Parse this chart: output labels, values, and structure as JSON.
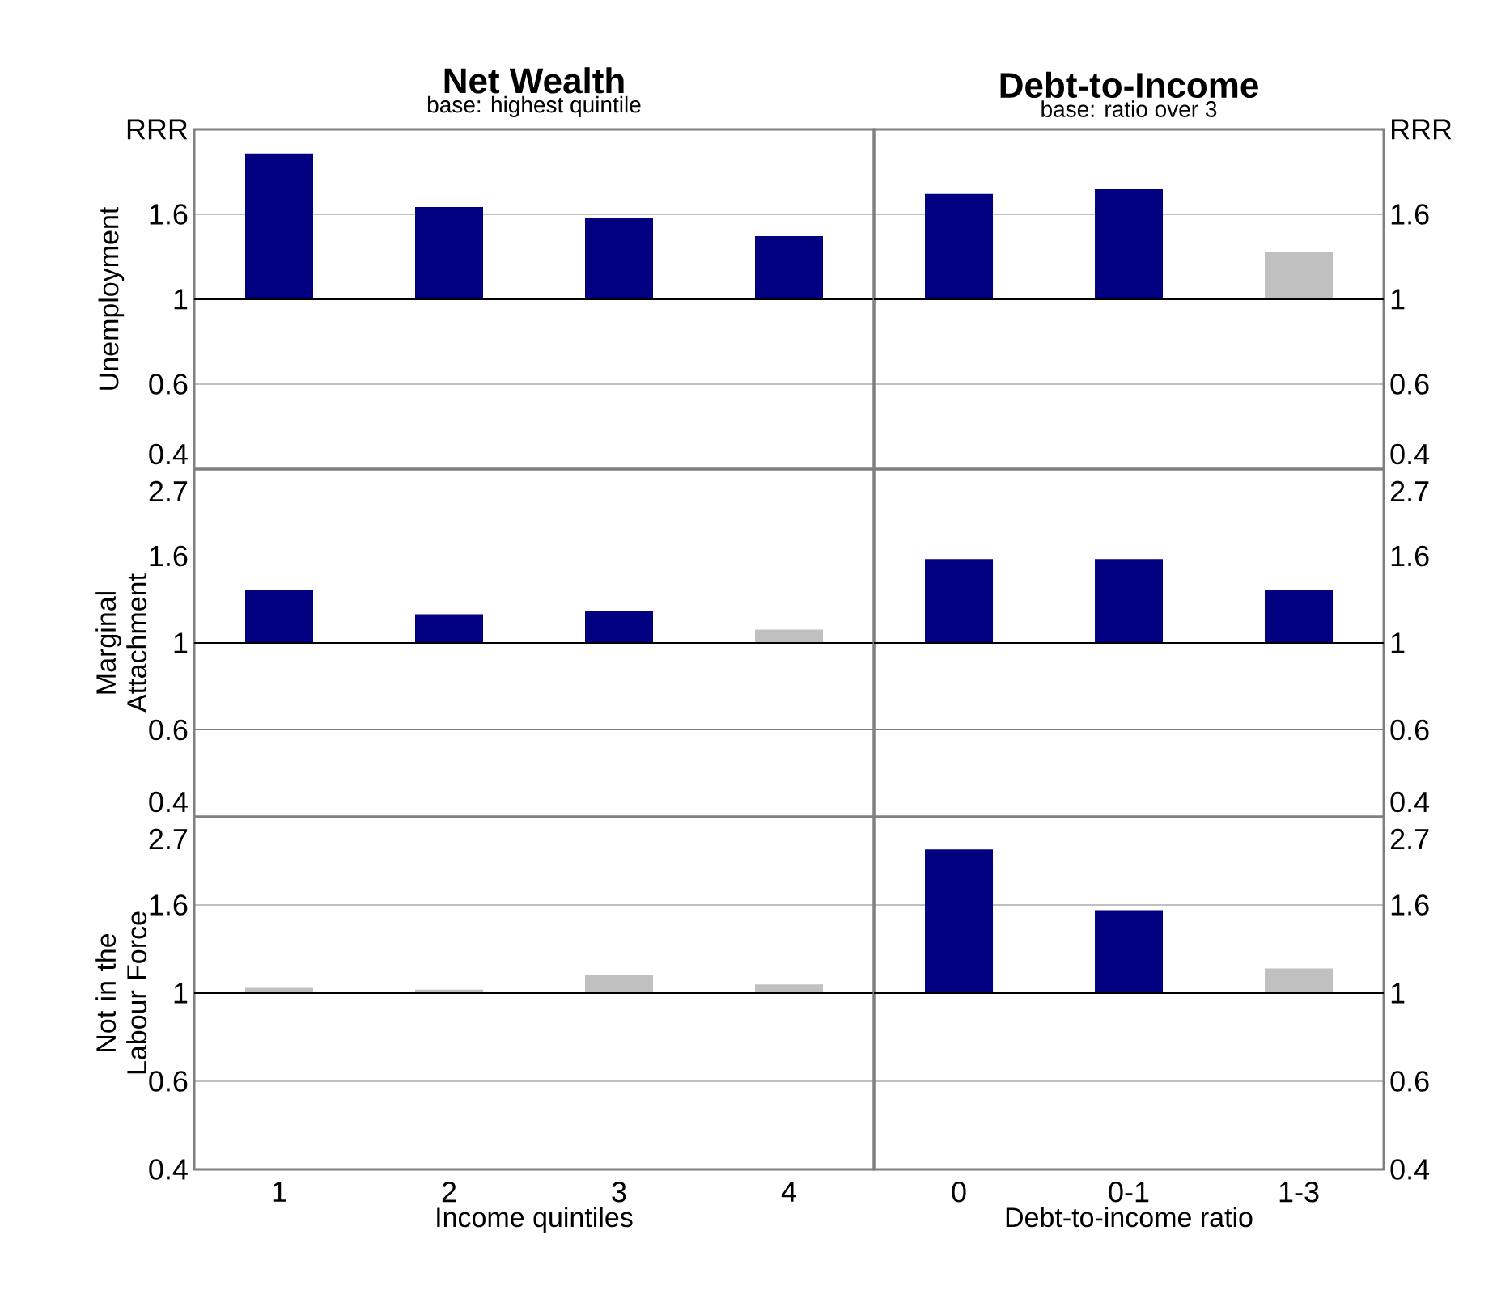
{
  "chart_data": [
    {
      "type": "bar",
      "title": "Net Wealth",
      "subtitle": "base: highest quintile",
      "ylabel": "Unemployment",
      "categories": [
        null,
        null,
        null,
        null
      ],
      "base": [
        1,
        1,
        1,
        1
      ],
      "values": [
        1.36,
        0.72,
        0.61,
        0.45
      ],
      "colors": [
        "#000080",
        "#000080",
        "#000080",
        "#000080"
      ],
      "log": "y",
      "ylim": [
        0.3679,
        2.7183
      ],
      "yticks": [
        {
          "value": 0.3679,
          "label": "0.4"
        },
        {
          "value": 0.6065,
          "label": "0.6"
        },
        1,
        {
          "value": 1.6487,
          "label": "1.6"
        },
        {
          "value": 2.7183,
          "label": "RRR"
        }
      ],
      "grid": "y",
      "tick_labels": "y",
      "ref_lines": [
        {
          "axis": "y",
          "value": 1,
          "color": "#000000"
        }
      ]
    },
    {
      "type": "bar",
      "title": "Debt-to-Income",
      "subtitle": "base: ratio over 3",
      "categories": [
        null,
        null,
        null
      ],
      "base": [
        1,
        1,
        1
      ],
      "values": [
        0.86,
        0.91,
        0.32
      ],
      "colors": [
        "#000080",
        "#000080",
        "#c0c0c0"
      ],
      "log": "y",
      "ylim": [
        0.3679,
        2.7183
      ],
      "yticks": [
        {
          "value": 0.3679,
          "label": "0.4"
        },
        {
          "value": 0.6065,
          "label": "0.6"
        },
        1,
        {
          "value": 1.6487,
          "label": "1.6"
        },
        {
          "value": 2.7183,
          "label": "RRR"
        }
      ],
      "grid": "y",
      "tick_labels": "y",
      "ref_lines": [
        {
          "axis": "y",
          "value": 1,
          "color": "#000000"
        }
      ]
    },
    {
      "type": "bar",
      "ylabel": "Marginal Attachment",
      "categories": [
        null,
        null,
        null,
        null
      ],
      "base": [
        1,
        1,
        1,
        1
      ],
      "values": [
        0.36,
        0.18,
        0.2,
        0.08
      ],
      "colors": [
        "#000080",
        "#000080",
        "#000080",
        "#c0c0c0"
      ],
      "log": "y",
      "ylim": [
        0.3679,
        2.7183
      ],
      "yticks": [
        {
          "value": 0.3679,
          "label": "0.4"
        },
        {
          "value": 0.6065,
          "label": "0.6"
        },
        1,
        {
          "value": 1.6487,
          "label": "1.6"
        },
        {
          "value": 2.7183,
          "label": "2.7"
        }
      ],
      "grid": "y",
      "tick_labels": "y",
      "ref_lines": [
        {
          "axis": "y",
          "value": 1,
          "color": "#000000"
        }
      ]
    },
    {
      "type": "bar",
      "categories": [
        null,
        null,
        null
      ],
      "base": [
        1,
        1,
        1
      ],
      "values": [
        0.62,
        0.62,
        0.36
      ],
      "colors": [
        "#000080",
        "#000080",
        "#000080"
      ],
      "log": "y",
      "ylim": [
        0.3679,
        2.7183
      ],
      "yticks": [
        {
          "value": 0.3679,
          "label": "0.4"
        },
        {
          "value": 0.6065,
          "label": "0.6"
        },
        1,
        {
          "value": 1.6487,
          "label": "1.6"
        },
        {
          "value": 2.7183,
          "label": "2.7"
        }
      ],
      "grid": "y",
      "tick_labels": "y",
      "ref_lines": [
        {
          "axis": "y",
          "value": 1,
          "color": "#000000"
        }
      ]
    },
    {
      "type": "bar",
      "ylabel": "Not in the Labour Force",
      "xlabel": "Income quintiles",
      "categories": [
        "1",
        "2",
        "3",
        "4"
      ],
      "base": [
        1,
        1,
        1,
        1
      ],
      "values": [
        0.03,
        0.02,
        0.11,
        0.05
      ],
      "colors": [
        "#c0c0c0",
        "#c0c0c0",
        "#c0c0c0",
        "#c0c0c0"
      ],
      "log": "y",
      "ylim": [
        0.3679,
        2.7183
      ],
      "yticks": [
        {
          "value": 0.3679,
          "label": "0.4"
        },
        {
          "value": 0.6065,
          "label": "0.6"
        },
        1,
        {
          "value": 1.6487,
          "label": "1.6"
        },
        {
          "value": 2.7183,
          "label": "2.7"
        }
      ],
      "grid": "y",
      "ref_lines": [
        {
          "axis": "y",
          "value": 1,
          "color": "#000000"
        }
      ]
    },
    {
      "type": "bar",
      "xlabel": "Debt-to-income ratio",
      "categories": [
        "0",
        "0-1",
        "1-3"
      ],
      "base": [
        1,
        1,
        1
      ],
      "values": [
        1.26,
        0.6,
        0.15
      ],
      "colors": [
        "#000080",
        "#000080",
        "#c0c0c0"
      ],
      "log": "y",
      "ylim": [
        0.3679,
        2.7183
      ],
      "yticks": [
        {
          "value": 0.3679,
          "label": "0.4"
        },
        {
          "value": 0.6065,
          "label": "0.6"
        },
        1,
        {
          "value": 1.6487,
          "label": "1.6"
        },
        {
          "value": 2.7183,
          "label": "2.7"
        }
      ],
      "grid": "y",
      "ref_lines": [
        {
          "axis": "y",
          "value": 1,
          "color": "#000000"
        }
      ]
    }
  ]
}
